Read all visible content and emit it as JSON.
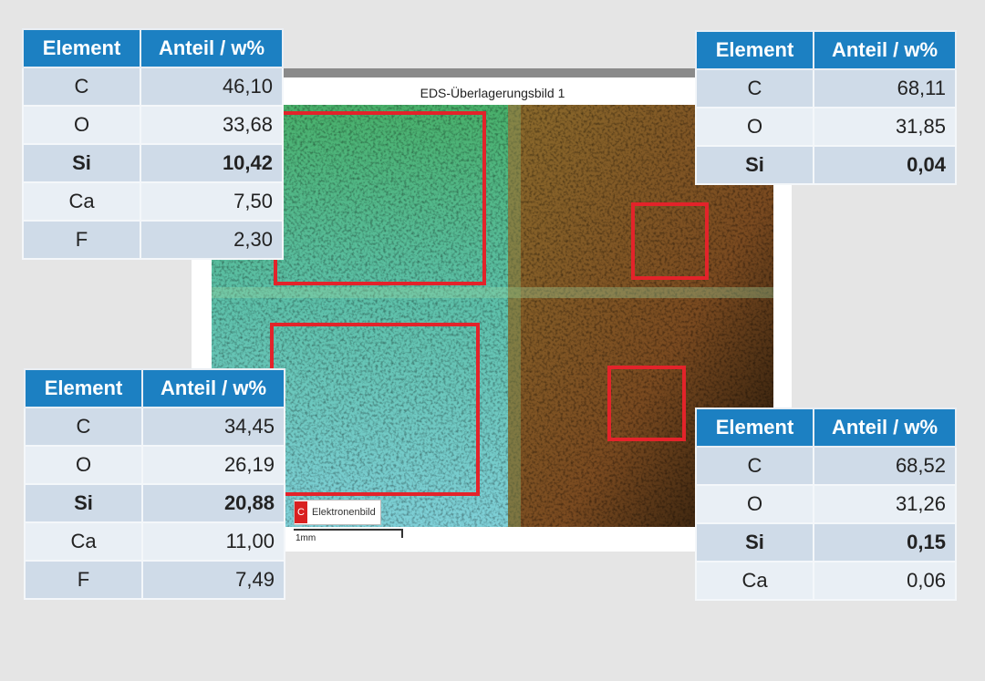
{
  "image": {
    "title": "EDS-Überlagerungsbild 1",
    "legend_swatch": "C",
    "legend_label": "Elektronenbild",
    "scale_label": "1mm"
  },
  "colors": {
    "header": "#1c80c2",
    "roi_box": "#e3232a",
    "row_dark": "#cfdbe8",
    "row_light": "#e9eff5"
  },
  "tables": {
    "top_left": {
      "headers": [
        "Element",
        "Anteil / w%"
      ],
      "rows": [
        [
          "C",
          "46,10"
        ],
        [
          "O",
          "33,68"
        ],
        [
          "Si",
          "10,42"
        ],
        [
          "Ca",
          "7,50"
        ],
        [
          "F",
          "2,30"
        ]
      ],
      "bold_element": "Si"
    },
    "top_right": {
      "headers": [
        "Element",
        "Anteil / w%"
      ],
      "rows": [
        [
          "C",
          "68,11"
        ],
        [
          "O",
          "31,85"
        ],
        [
          "Si",
          "0,04"
        ]
      ],
      "bold_element": "Si"
    },
    "bottom_left": {
      "headers": [
        "Element",
        "Anteil / w%"
      ],
      "rows": [
        [
          "C",
          "34,45"
        ],
        [
          "O",
          "26,19"
        ],
        [
          "Si",
          "20,88"
        ],
        [
          "Ca",
          "11,00"
        ],
        [
          "F",
          "7,49"
        ]
      ],
      "bold_element": "Si"
    },
    "bottom_right": {
      "headers": [
        "Element",
        "Anteil / w%"
      ],
      "rows": [
        [
          "C",
          "68,52"
        ],
        [
          "O",
          "31,26"
        ],
        [
          "Si",
          "0,15"
        ],
        [
          "Ca",
          "0,06"
        ]
      ],
      "bold_element": "Si"
    }
  }
}
